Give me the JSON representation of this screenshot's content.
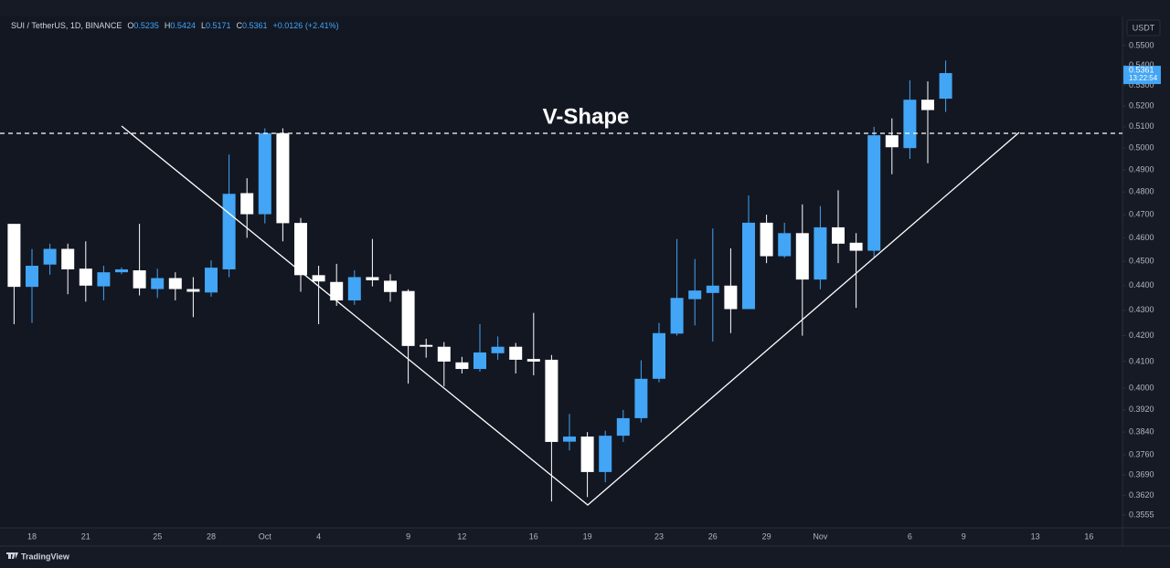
{
  "chart_data": {
    "type": "candlestick",
    "symbol": "SUI / TetherUS, 1D, BINANCE",
    "ohlc_labels": [
      "O",
      "H",
      "L",
      "C"
    ],
    "change": "+0.0126 (+2.41%)",
    "currency": "USDT",
    "countdown": "13:22:54",
    "annotation": "V-Shape",
    "brand": "TradingView",
    "up_color": "#42a5f5",
    "down_color": "#ffffff",
    "log_scale": true,
    "ylim": [
      0.3513,
      0.5651
    ],
    "yticks": [
      {
        "value": 0.55,
        "label": "0.5500"
      },
      {
        "value": 0.54,
        "label": "0.5400"
      },
      {
        "value": 0.53,
        "label": "0.5300"
      },
      {
        "value": 0.52,
        "label": "0.5200"
      },
      {
        "value": 0.51,
        "label": "0.5100"
      },
      {
        "value": 0.5,
        "label": "0.5000"
      },
      {
        "value": 0.49,
        "label": "0.4900"
      },
      {
        "value": 0.48,
        "label": "0.4800"
      },
      {
        "value": 0.47,
        "label": "0.4700"
      },
      {
        "value": 0.46,
        "label": "0.4600"
      },
      {
        "value": 0.45,
        "label": "0.4500"
      },
      {
        "value": 0.44,
        "label": "0.4400"
      },
      {
        "value": 0.43,
        "label": "0.4300"
      },
      {
        "value": 0.42,
        "label": "0.4200"
      },
      {
        "value": 0.41,
        "label": "0.4100"
      },
      {
        "value": 0.4,
        "label": "0.4000"
      },
      {
        "value": 0.392,
        "label": "0.3920"
      },
      {
        "value": 0.384,
        "label": "0.3840"
      },
      {
        "value": 0.376,
        "label": "0.3760"
      },
      {
        "value": 0.369,
        "label": "0.3690"
      },
      {
        "value": 0.362,
        "label": "0.3620"
      },
      {
        "value": 0.3555,
        "label": "0.3555"
      }
    ],
    "categories": [
      null,
      "18",
      null,
      null,
      "21",
      null,
      null,
      null,
      "25",
      null,
      null,
      "28",
      null,
      null,
      "Oct",
      null,
      null,
      "4",
      null,
      null,
      null,
      null,
      "9",
      null,
      null,
      "12",
      null,
      null,
      null,
      "16",
      null,
      null,
      "19",
      null,
      null,
      null,
      "23",
      null,
      null,
      "26",
      null,
      null,
      "29",
      null,
      null,
      "Nov",
      null,
      null,
      null,
      null,
      "6",
      null,
      null,
      "9",
      null,
      null,
      null,
      "13",
      null,
      null,
      "16",
      null
    ],
    "open": [
      0.466,
      0.4395,
      0.4487,
      0.4553,
      0.447,
      0.4397,
      0.4455,
      0.4463,
      0.4386,
      0.4431,
      0.4386,
      0.4372,
      0.4467,
      0.4795,
      0.4702,
      0.507,
      0.4664,
      0.4443,
      0.4415,
      0.434,
      0.4435,
      0.442,
      0.4378,
      0.4164,
      0.4157,
      0.4097,
      0.4072,
      0.4132,
      0.4157,
      0.411,
      0.4107,
      0.3806,
      0.3824,
      0.37,
      0.3827,
      0.389,
      0.4035,
      0.4208,
      0.4345,
      0.437,
      0.44,
      0.4305,
      0.4665,
      0.4522,
      0.462,
      0.4425,
      0.4645,
      0.4579,
      0.4545,
      0.506,
      0.5,
      0.523,
      0.5235,
      null,
      null,
      null,
      null,
      null,
      null,
      null,
      null,
      null
    ],
    "high": [
      0.466,
      0.4552,
      0.4575,
      0.4575,
      0.4585,
      0.4482,
      0.4475,
      0.466,
      0.447,
      0.4455,
      0.4435,
      0.4505,
      0.497,
      0.4862,
      0.5093,
      0.5093,
      0.4686,
      0.4482,
      0.449,
      0.4463,
      0.4595,
      0.4447,
      0.4385,
      0.4188,
      0.4175,
      0.4118,
      0.4245,
      0.4197,
      0.4172,
      0.429,
      0.4125,
      0.3905,
      0.384,
      0.3845,
      0.392,
      0.4105,
      0.425,
      0.4595,
      0.451,
      0.464,
      0.4555,
      0.4785,
      0.47,
      0.4665,
      0.4745,
      0.4738,
      0.4808,
      0.462,
      0.51,
      0.514,
      0.5325,
      0.532,
      0.5424,
      null,
      null,
      null,
      null,
      null,
      null,
      null,
      null,
      null
    ],
    "low": [
      0.4245,
      0.425,
      0.4445,
      0.4365,
      0.4335,
      0.434,
      0.4447,
      0.436,
      0.435,
      0.434,
      0.4273,
      0.4355,
      0.4435,
      0.46,
      0.4662,
      0.4585,
      0.4375,
      0.4245,
      0.4318,
      0.4322,
      0.4397,
      0.4335,
      0.4017,
      0.4115,
      0.4007,
      0.4055,
      0.4062,
      0.4107,
      0.4055,
      0.4048,
      0.36,
      0.3775,
      0.3615,
      0.3665,
      0.3805,
      0.3875,
      0.4022,
      0.42,
      0.424,
      0.4177,
      0.421,
      0.4305,
      0.4493,
      0.4515,
      0.42,
      0.4385,
      0.4493,
      0.431,
      0.4515,
      0.488,
      0.495,
      0.493,
      0.5171,
      null,
      null,
      null,
      null,
      null,
      null,
      null,
      null,
      null
    ],
    "close": [
      0.4395,
      0.4482,
      0.4553,
      0.4467,
      0.44,
      0.4455,
      0.4467,
      0.4389,
      0.4431,
      0.4386,
      0.4375,
      0.4474,
      0.4792,
      0.4702,
      0.507,
      0.4663,
      0.4443,
      0.4417,
      0.434,
      0.4435,
      0.4422,
      0.4374,
      0.416,
      0.4157,
      0.41,
      0.4072,
      0.4135,
      0.4157,
      0.4107,
      0.41,
      0.3805,
      0.3824,
      0.37,
      0.3827,
      0.389,
      0.4035,
      0.421,
      0.435,
      0.438,
      0.44,
      0.4305,
      0.4665,
      0.4522,
      0.462,
      0.4425,
      0.4645,
      0.4575,
      0.4545,
      0.506,
      0.5004,
      0.523,
      0.518,
      0.5361,
      null,
      null,
      null,
      null,
      null,
      null,
      null,
      null,
      null
    ]
  }
}
